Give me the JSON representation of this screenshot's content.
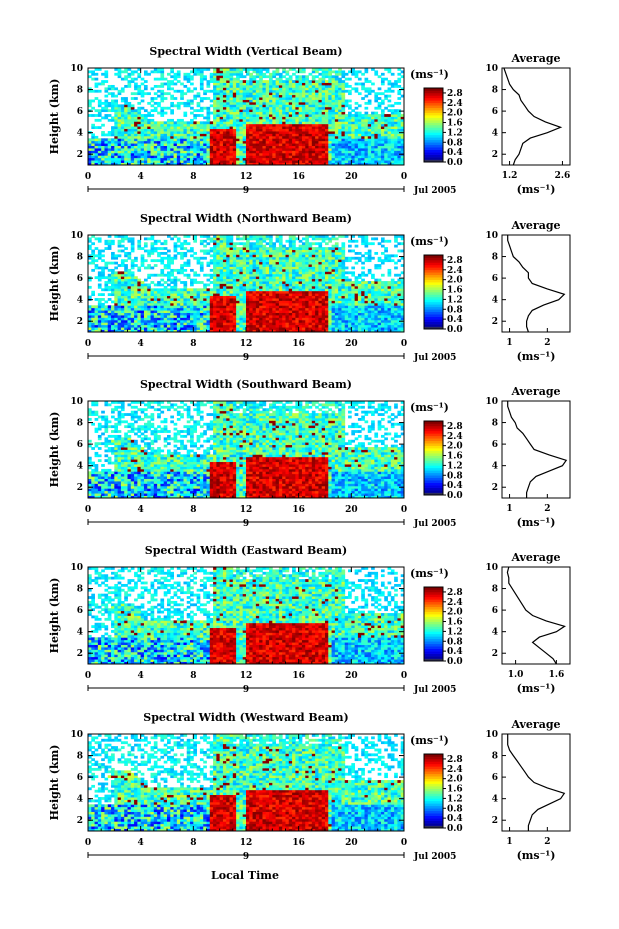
{
  "figure": {
    "xlabel": "Local Time",
    "date_label": "Jul 2005",
    "day_label": "9",
    "panel_ylabel": "Height (km)",
    "colorbar_unit": "(ms⁻¹)",
    "profile_title": "Average",
    "profile_xlabel": "(ms⁻¹)"
  },
  "chart_data": [
    {
      "type": "heatmap",
      "title": "Spectral Width (Vertical Beam)",
      "xlabel": "",
      "ylabel": "Height (km)",
      "xticks": [
        "0",
        "4",
        "8",
        "12",
        "16",
        "20",
        "0"
      ],
      "xlim": [
        0,
        24
      ],
      "yticks": [
        "2",
        "4",
        "6",
        "8",
        "10"
      ],
      "ylim": [
        1,
        10
      ],
      "colorbar": {
        "ticks": [
          "0.0",
          "0.4",
          "0.8",
          "1.2",
          "1.6",
          "2.0",
          "2.4",
          "2.8"
        ],
        "range": [
          0,
          3.0
        ]
      },
      "profile": {
        "title": "Average",
        "xticks": [
          "1.2",
          "2.6"
        ],
        "xlim": [
          1.0,
          2.8
        ],
        "ylim": [
          1,
          10
        ],
        "height": [
          1.0,
          1.5,
          2.0,
          2.5,
          3.0,
          3.5,
          4.0,
          4.5,
          5.0,
          5.5,
          6.0,
          6.5,
          7.0,
          7.5,
          8.0,
          8.5,
          9.0,
          9.5,
          10.0
        ],
        "values": [
          1.3,
          1.35,
          1.45,
          1.5,
          1.55,
          1.75,
          2.2,
          2.55,
          2.15,
          1.85,
          1.7,
          1.6,
          1.5,
          1.45,
          1.3,
          1.2,
          1.15,
          1.1,
          1.05
        ]
      }
    },
    {
      "type": "heatmap",
      "title": "Spectral Width (Northward Beam)",
      "xlabel": "",
      "ylabel": "Height (km)",
      "xticks": [
        "0",
        "4",
        "8",
        "12",
        "16",
        "20",
        "0"
      ],
      "xlim": [
        0,
        24
      ],
      "yticks": [
        "2",
        "4",
        "6",
        "8",
        "10"
      ],
      "ylim": [
        1,
        10
      ],
      "colorbar": {
        "ticks": [
          "0.0",
          "0.4",
          "0.8",
          "1.2",
          "1.6",
          "2.0",
          "2.4",
          "2.8"
        ],
        "range": [
          0,
          3.0
        ]
      },
      "profile": {
        "title": "Average",
        "xticks": [
          "1",
          "2"
        ],
        "xlim": [
          0.8,
          2.6
        ],
        "ylim": [
          1,
          10
        ],
        "height": [
          1.0,
          1.5,
          2.0,
          2.5,
          3.0,
          3.5,
          4.0,
          4.5,
          5.0,
          5.5,
          6.0,
          6.5,
          7.0,
          7.5,
          8.0,
          8.5,
          9.0,
          9.5,
          10.0
        ],
        "values": [
          1.5,
          1.45,
          1.45,
          1.5,
          1.6,
          1.9,
          2.3,
          2.45,
          2.0,
          1.6,
          1.5,
          1.5,
          1.35,
          1.25,
          1.1,
          1.05,
          1.0,
          0.95,
          0.95
        ]
      }
    },
    {
      "type": "heatmap",
      "title": "Spectral Width (Southward Beam)",
      "xlabel": "",
      "ylabel": "Height (km)",
      "xticks": [
        "0",
        "4",
        "8",
        "12",
        "16",
        "20",
        "0"
      ],
      "xlim": [
        0,
        24
      ],
      "yticks": [
        "2",
        "4",
        "6",
        "8",
        "10"
      ],
      "ylim": [
        1,
        10
      ],
      "colorbar": {
        "ticks": [
          "0.0",
          "0.4",
          "0.8",
          "1.2",
          "1.6",
          "2.0",
          "2.4",
          "2.8"
        ],
        "range": [
          0,
          3.0
        ]
      },
      "profile": {
        "title": "Average",
        "xticks": [
          "1",
          "2"
        ],
        "xlim": [
          0.8,
          2.6
        ],
        "ylim": [
          1,
          10
        ],
        "height": [
          1.0,
          1.5,
          2.0,
          2.5,
          3.0,
          3.5,
          4.0,
          4.5,
          5.0,
          5.5,
          6.0,
          6.5,
          7.0,
          7.5,
          8.0,
          8.5,
          9.0,
          9.5,
          10.0
        ],
        "values": [
          1.45,
          1.45,
          1.5,
          1.55,
          1.7,
          2.05,
          2.4,
          2.5,
          2.05,
          1.65,
          1.55,
          1.45,
          1.35,
          1.2,
          1.15,
          1.05,
          1.0,
          0.95,
          0.95
        ]
      }
    },
    {
      "type": "heatmap",
      "title": "Spectral Width (Eastward Beam)",
      "xlabel": "",
      "ylabel": "Height (km)",
      "xticks": [
        "0",
        "4",
        "8",
        "12",
        "16",
        "20",
        "0"
      ],
      "xlim": [
        0,
        24
      ],
      "yticks": [
        "2",
        "4",
        "6",
        "8",
        "10"
      ],
      "ylim": [
        1,
        10
      ],
      "colorbar": {
        "ticks": [
          "0.0",
          "0.4",
          "0.8",
          "1.2",
          "1.6",
          "2.0",
          "2.4",
          "2.8"
        ],
        "range": [
          0,
          3.0
        ]
      },
      "profile": {
        "title": "Average",
        "xticks": [
          "1.0",
          "1.6"
        ],
        "xlim": [
          0.8,
          1.8
        ],
        "ylim": [
          1,
          10
        ],
        "height": [
          1.0,
          1.5,
          2.0,
          2.5,
          3.0,
          3.5,
          4.0,
          4.5,
          5.0,
          5.5,
          6.0,
          6.5,
          7.0,
          7.5,
          8.0,
          8.5,
          9.0,
          9.5,
          10.0
        ],
        "values": [
          1.6,
          1.55,
          1.45,
          1.35,
          1.25,
          1.35,
          1.6,
          1.72,
          1.45,
          1.25,
          1.15,
          1.1,
          1.05,
          1.0,
          0.95,
          0.9,
          0.9,
          0.88,
          0.9
        ]
      }
    },
    {
      "type": "heatmap",
      "title": "Spectral Width (Westward Beam)",
      "xlabel": "Local Time",
      "ylabel": "Height (km)",
      "xticks": [
        "0",
        "4",
        "8",
        "12",
        "16",
        "20",
        "0"
      ],
      "xlim": [
        0,
        24
      ],
      "yticks": [
        "2",
        "4",
        "6",
        "8",
        "10"
      ],
      "ylim": [
        1,
        10
      ],
      "colorbar": {
        "ticks": [
          "0.0",
          "0.4",
          "0.8",
          "1.2",
          "1.6",
          "2.0",
          "2.4",
          "2.8"
        ],
        "range": [
          0,
          3.0
        ]
      },
      "profile": {
        "title": "Average",
        "xticks": [
          "1",
          "2"
        ],
        "xlim": [
          0.8,
          2.6
        ],
        "ylim": [
          1,
          10
        ],
        "height": [
          1.0,
          1.5,
          2.0,
          2.5,
          3.0,
          3.5,
          4.0,
          4.5,
          5.0,
          5.5,
          6.0,
          6.5,
          7.0,
          7.5,
          8.0,
          8.5,
          9.0,
          9.5,
          10.0
        ],
        "values": [
          1.5,
          1.5,
          1.55,
          1.6,
          1.75,
          2.05,
          2.35,
          2.45,
          2.0,
          1.65,
          1.5,
          1.4,
          1.3,
          1.2,
          1.1,
          1.0,
          0.95,
          0.95,
          0.95
        ]
      }
    }
  ]
}
